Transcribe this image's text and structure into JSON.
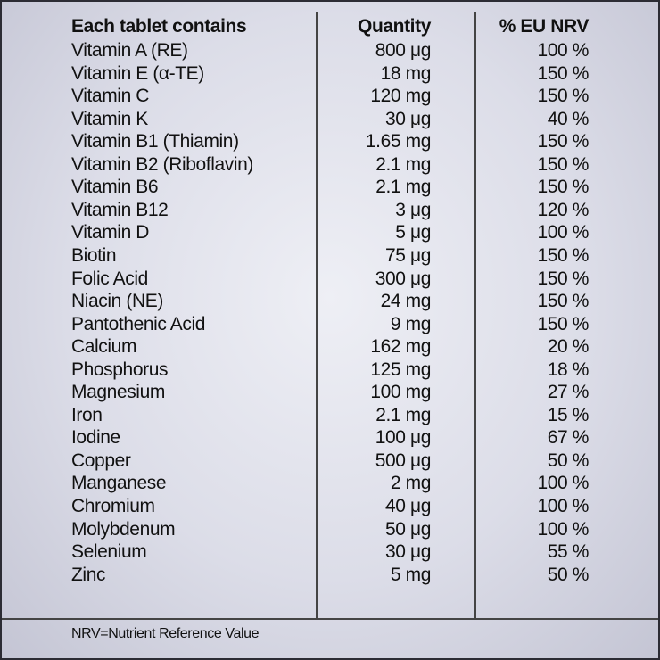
{
  "table": {
    "header": [
      "Each tablet contains",
      "Quantity",
      "% EU NRV"
    ],
    "rows": [
      [
        "Vitamin A (RE)",
        "800 μg",
        "100 %"
      ],
      [
        "Vitamin E (α-TE)",
        "18 mg",
        "150 %"
      ],
      [
        "Vitamin C",
        "120 mg",
        "150 %"
      ],
      [
        "Vitamin K",
        "30 μg",
        "40 %"
      ],
      [
        "Vitamin B1 (Thiamin)",
        "1.65 mg",
        "150 %"
      ],
      [
        "Vitamin B2 (Riboflavin)",
        "2.1 mg",
        "150 %"
      ],
      [
        "Vitamin B6",
        "2.1 mg",
        "150 %"
      ],
      [
        "Vitamin B12",
        "3 μg",
        "120 %"
      ],
      [
        "Vitamin D",
        "5 μg",
        "100 %"
      ],
      [
        "Biotin",
        "75 μg",
        "150 %"
      ],
      [
        "Folic Acid",
        "300 μg",
        "150 %"
      ],
      [
        "Niacin (NE)",
        "24 mg",
        "150 %"
      ],
      [
        "Pantothenic Acid",
        "9 mg",
        "150 %"
      ],
      [
        "Calcium",
        "162 mg",
        "20 %"
      ],
      [
        "Phosphorus",
        "125 mg",
        "18 %"
      ],
      [
        "Magnesium",
        "100 mg",
        "27 %"
      ],
      [
        "Iron",
        "2.1 mg",
        "15 %"
      ],
      [
        "Iodine",
        "100 μg",
        "67 %"
      ],
      [
        "Copper",
        "500 μg",
        "50 %"
      ],
      [
        "Manganese",
        "2 mg",
        "100 %"
      ],
      [
        "Chromium",
        "40 μg",
        "100 %"
      ],
      [
        "Molybdenum",
        "50 μg",
        "100 %"
      ],
      [
        "Selenium",
        "30 μg",
        "55 %"
      ],
      [
        "Zinc",
        "5 mg",
        "50 %"
      ]
    ],
    "footnote": "NRV=Nutrient Reference Value"
  }
}
